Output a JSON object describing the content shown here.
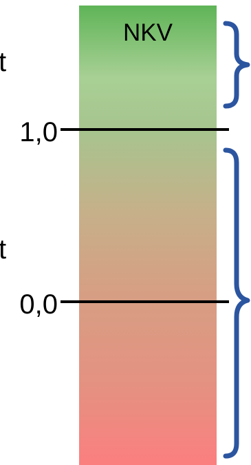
{
  "bar": {
    "label": "NKV",
    "gradient_colors": [
      "#5fb457",
      "#a8d095",
      "#a7c48e",
      "#c6b08a",
      "#d4a184",
      "#e69081",
      "#fb7f7f"
    ]
  },
  "levels": [
    {
      "label": "1,0",
      "value": 1.0
    },
    {
      "label": "0,0",
      "value": 0.0
    }
  ],
  "cut_text": [
    "t",
    "t"
  ],
  "brace_color": "#2c55a0",
  "line_color": "#000000"
}
